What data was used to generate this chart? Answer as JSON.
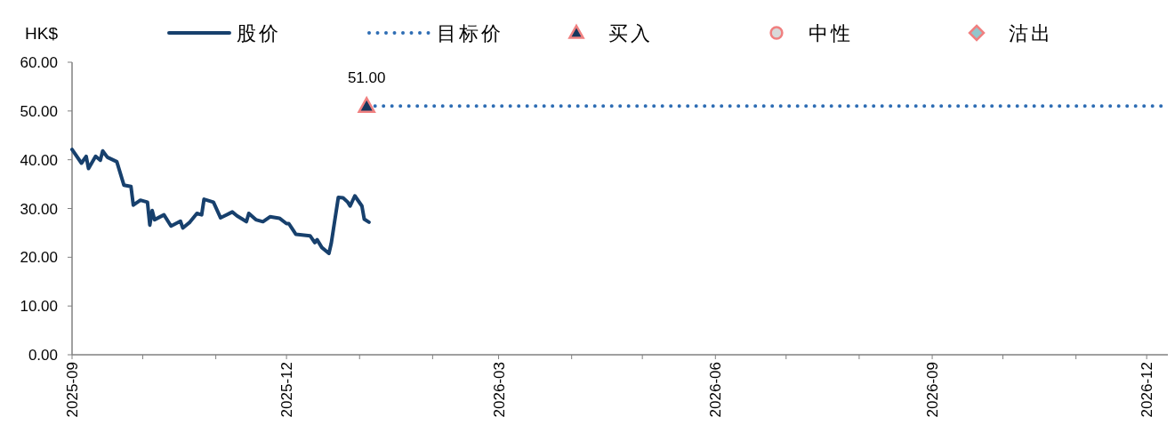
{
  "chart_data": {
    "type": "line",
    "ylabel": "HK$",
    "xlim": [
      "2025-09-01",
      "2026-12-10"
    ],
    "xticks": [
      {
        "value": "2025-09-01",
        "label": "2025-09"
      },
      {
        "value": "2025-10-01",
        "label": null
      },
      {
        "value": "2025-11-01",
        "label": null
      },
      {
        "value": "2025-12-01",
        "label": "2025-12"
      },
      {
        "value": "2026-01-01",
        "label": null
      },
      {
        "value": "2026-02-01",
        "label": null
      },
      {
        "value": "2026-03-01",
        "label": "2026-03"
      },
      {
        "value": "2026-04-01",
        "label": null
      },
      {
        "value": "2026-05-01",
        "label": null
      },
      {
        "value": "2026-06-01",
        "label": "2026-06"
      },
      {
        "value": "2026-07-01",
        "label": null
      },
      {
        "value": "2026-08-01",
        "label": null
      },
      {
        "value": "2026-09-01",
        "label": "2026-09"
      },
      {
        "value": "2026-10-01",
        "label": null
      },
      {
        "value": "2026-11-01",
        "label": null
      },
      {
        "value": "2026-12-01",
        "label": "2026-12"
      }
    ],
    "ylim": [
      0,
      60
    ],
    "yticks": [
      {
        "value": 0,
        "label": "0.00"
      },
      {
        "value": 10,
        "label": "10.00"
      },
      {
        "value": 20,
        "label": "20.00"
      },
      {
        "value": 30,
        "label": "30.00"
      },
      {
        "value": 40,
        "label": "40.00"
      },
      {
        "value": 50,
        "label": "50.00"
      },
      {
        "value": 60,
        "label": "60.00"
      }
    ],
    "legend": "top",
    "series": [
      {
        "name": "股价",
        "color": "#17406d",
        "line_style": "solid",
        "marker": "none",
        "x": [
          "2025-09-01",
          "2025-09-05",
          "2025-09-07",
          "2025-09-08",
          "2025-09-11",
          "2025-09-13",
          "2025-09-14",
          "2025-09-16",
          "2025-09-20",
          "2025-09-23",
          "2025-09-26",
          "2025-09-27",
          "2025-09-30",
          "2025-10-03",
          "2025-10-04",
          "2025-10-05",
          "2025-10-06",
          "2025-10-10",
          "2025-10-13",
          "2025-10-17",
          "2025-10-18",
          "2025-10-21",
          "2025-10-24",
          "2025-10-26",
          "2025-10-27",
          "2025-10-31",
          "2025-11-03",
          "2025-11-08",
          "2025-11-10",
          "2025-11-14",
          "2025-11-15",
          "2025-11-18",
          "2025-11-21",
          "2025-11-24",
          "2025-11-28",
          "2025-12-01",
          "2025-12-02",
          "2025-12-05",
          "2025-12-11",
          "2025-12-13",
          "2025-12-14",
          "2025-12-16",
          "2025-12-19",
          "2025-12-20",
          "2025-12-23",
          "2025-12-25",
          "2025-12-27",
          "2025-12-28",
          "2025-12-30",
          "2026-01-02",
          "2026-01-03",
          "2026-01-05"
        ],
        "values": [
          42.1,
          39.3,
          40.7,
          38.2,
          40.7,
          39.9,
          41.8,
          40.5,
          39.6,
          34.8,
          34.5,
          30.7,
          31.7,
          31.3,
          26.6,
          29.6,
          27.7,
          28.7,
          26.4,
          27.4,
          26.0,
          27.2,
          29.0,
          28.7,
          31.9,
          31.3,
          28.1,
          29.3,
          28.5,
          27.3,
          29.0,
          27.7,
          27.3,
          28.3,
          28.0,
          26.9,
          26.9,
          24.7,
          24.4,
          23.0,
          23.6,
          22.0,
          20.8,
          22.9,
          32.3,
          32.2,
          31.3,
          30.5,
          32.6,
          30.5,
          27.8,
          27.2
        ]
      },
      {
        "name": "目标价",
        "color": "#2e6db4",
        "line_style": "dotted",
        "marker": "none",
        "x": [
          "2026-01-04",
          "2026-12-10"
        ],
        "values": [
          51,
          51
        ]
      },
      {
        "name": "买入",
        "type": "scatter",
        "color": "#17375e",
        "marker": "triangle",
        "x": [
          "2026-01-04"
        ],
        "values": [
          51
        ],
        "value_labels": [
          "51.00"
        ]
      },
      {
        "name": "中性",
        "type": "scatter",
        "color": "#d9d9d9",
        "marker": "circle"
      },
      {
        "name": "沽出",
        "type": "scatter",
        "color": "#93c6cc",
        "marker": "diamond"
      }
    ]
  }
}
